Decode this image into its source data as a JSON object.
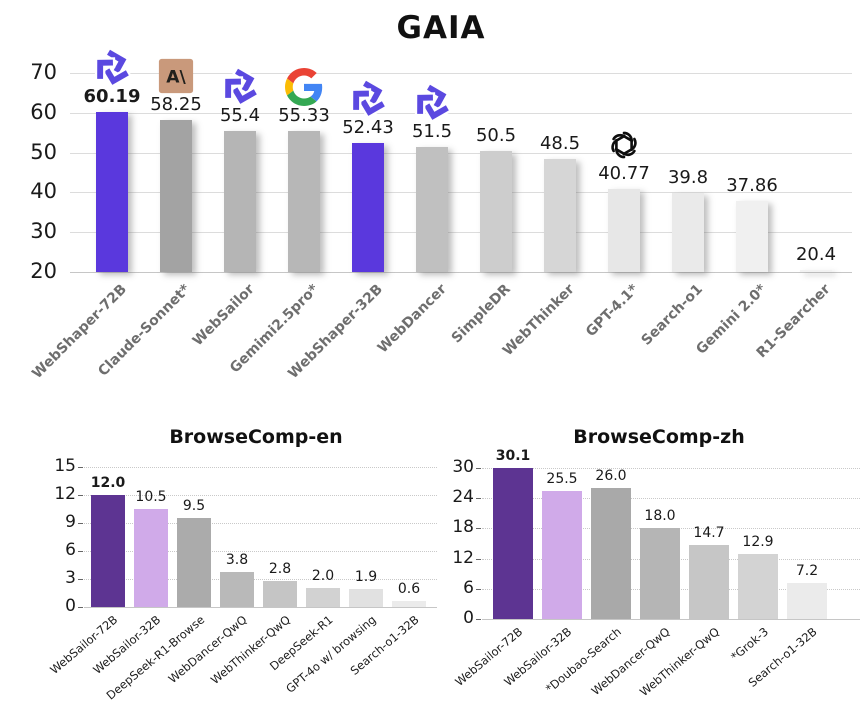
{
  "chart_data": [
    {
      "id": "gaia",
      "type": "bar",
      "title": "GAIA",
      "categories": [
        "WebShaper-72B",
        "Claude-Sonnet*",
        "WebSailor",
        "Gemimi2.5pro*",
        "WebShaper-32B",
        "WebDancer",
        "SimpleDR",
        "WebThinker",
        "GPT-4.1*",
        "Search-o1",
        "Gemini 2.0*",
        "R1-Searcher"
      ],
      "values": [
        60.19,
        58.25,
        55.4,
        55.33,
        52.43,
        51.5,
        50.5,
        48.5,
        40.77,
        39.8,
        37.86,
        20.4
      ],
      "value_labels": [
        "60.19",
        "58.25",
        "55.4",
        "55.33",
        "52.43",
        "51.5",
        "50.5",
        "48.5",
        "40.77",
        "39.8",
        "37.86",
        "20.4"
      ],
      "bar_colors": [
        "#5a38dd",
        "#a3a3a3",
        "#b5b5b5",
        "#b7b7b7",
        "#5a38dd",
        "#c0c0c0",
        "#cdcdcd",
        "#d6d6d6",
        "#e7e7e7",
        "#eaeaea",
        "#f0f0f0",
        "#f2f2f2"
      ],
      "icons": [
        "tongyi-icon",
        "anthropic-icon",
        "tongyi-icon",
        "google-icon",
        "tongyi-icon",
        "tongyi-icon",
        null,
        null,
        "openai-icon",
        null,
        null,
        null
      ],
      "bold_value_index": 0,
      "yticks": [
        20,
        30,
        40,
        50,
        60,
        70
      ],
      "ylim": [
        20,
        72
      ],
      "grid": "on",
      "legend": "none",
      "xlabel": "",
      "ylabel": ""
    },
    {
      "id": "browsecomp_en",
      "type": "bar",
      "title": "BrowseComp-en",
      "categories": [
        "WebSailor-72B",
        "WebSailor-32B",
        "DeepSeek-R1-Browse",
        "WebDancer-QwQ",
        "WebThinker-QwQ",
        "DeepSeek-R1",
        "GPT-4o w/ browsing",
        "Search-o1-32B"
      ],
      "values": [
        12.0,
        10.5,
        9.5,
        3.8,
        2.8,
        2.0,
        1.9,
        0.6
      ],
      "value_labels": [
        "12.0",
        "10.5",
        "9.5",
        "3.8",
        "2.8",
        "2.0",
        "1.9",
        "0.6"
      ],
      "bar_colors": [
        "#5d3492",
        "#d0aae9",
        "#ababab",
        "#b9b9b9",
        "#c5c5c5",
        "#d2d2d2",
        "#e1e1e1",
        "#ebebeb"
      ],
      "icons": [
        null,
        null,
        null,
        null,
        null,
        null,
        null,
        null
      ],
      "bold_value_index": 0,
      "yticks": [
        0,
        3,
        6,
        9,
        12,
        15
      ],
      "ylim": [
        0,
        15.2
      ],
      "grid": "on",
      "legend": "none",
      "xlabel": "",
      "ylabel": ""
    },
    {
      "id": "browsecomp_zh",
      "type": "bar",
      "title": "BrowseComp-zh",
      "categories": [
        "WebSailor-72B",
        "WebSailor-32B",
        "*Doubao-Search",
        "WebDancer-QwQ",
        "WebThinker-QwQ",
        "*Grok-3",
        "Search-o1-32B"
      ],
      "values": [
        30.1,
        25.5,
        26.0,
        18.0,
        14.7,
        12.9,
        7.2
      ],
      "value_labels": [
        "30.1",
        "25.5",
        "26.0",
        "18.0",
        "14.7",
        "12.9",
        "7.2"
      ],
      "bar_colors": [
        "#5d3492",
        "#d0aae9",
        "#a9a9a9",
        "#b5b5b5",
        "#c6c6c6",
        "#d3d3d3",
        "#ebebeb"
      ],
      "icons": [
        null,
        null,
        null,
        null,
        null,
        null,
        null
      ],
      "bold_value_index": 0,
      "yticks": [
        0,
        6,
        12,
        18,
        24,
        30
      ],
      "ylim": [
        0,
        30.5
      ],
      "grid": "on",
      "legend": "none",
      "xlabel": "",
      "ylabel": ""
    }
  ],
  "accent_colors": {
    "highlight_violet": "#5a38dd",
    "dark_purple": "#5d3492",
    "light_purple": "#d0aae9",
    "gray_gradient_start": "#a3a3a3",
    "gray_gradient_end": "#f2f2f2"
  }
}
